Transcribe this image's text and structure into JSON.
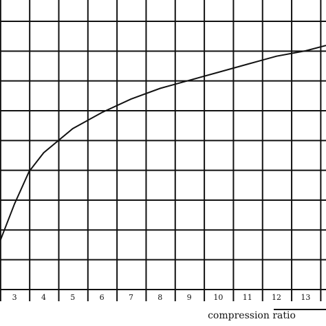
{
  "chart_data": {
    "type": "line",
    "title": "",
    "xlabel": "compression ratio",
    "ylabel": "",
    "grid": true,
    "xlim": [
      2.5,
      13.7
    ],
    "x_ticks": [
      3,
      4,
      5,
      6,
      7,
      8,
      9,
      10,
      11,
      12,
      13
    ],
    "x_tick_labels": [
      "3",
      "4",
      "5",
      "6",
      "7",
      "8",
      "9",
      "10",
      "11",
      "12",
      "13"
    ],
    "y_gridlines": 10,
    "series": [
      {
        "x": [
          2.5,
          3.0,
          3.5,
          4.0,
          5.0,
          6.0,
          7.0,
          8.0,
          9.0,
          10.0,
          11.0,
          12.0,
          13.0,
          13.7
        ],
        "y": [
          0.18,
          0.32,
          0.44,
          0.51,
          0.6,
          0.66,
          0.71,
          0.75,
          0.78,
          0.81,
          0.84,
          0.87,
          0.89,
          0.91
        ]
      }
    ]
  }
}
